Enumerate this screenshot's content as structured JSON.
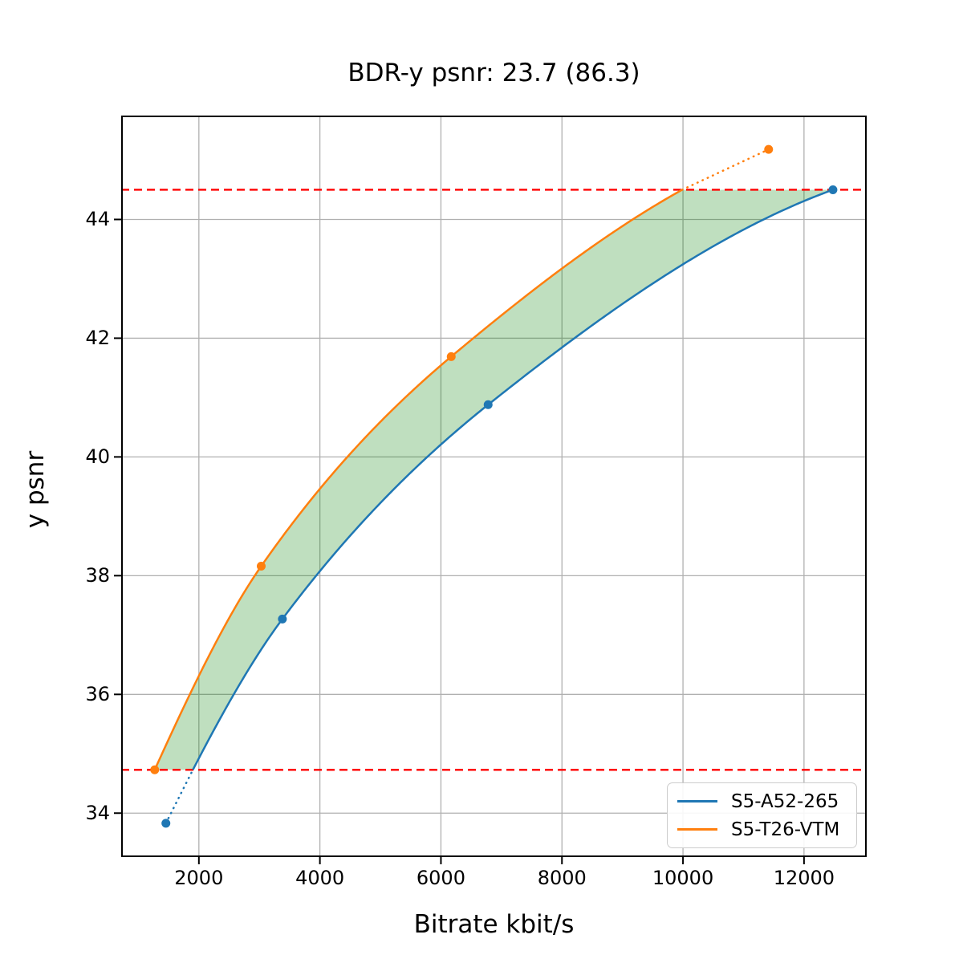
{
  "title": "BDR-y psnr: 23.7 (86.3)",
  "xlabel": "Bitrate kbit/s",
  "ylabel": "y psnr",
  "legend": {
    "position": "lower right",
    "items": [
      {
        "label": "S5-A52-265",
        "color": "#1f77b4"
      },
      {
        "label": "S5-T26-VTM",
        "color": "#ff7f0e"
      }
    ]
  },
  "chart_data": {
    "type": "line",
    "title": "BDR-y psnr: 23.7 (86.3)",
    "xlabel": "Bitrate kbit/s",
    "ylabel": "y psnr",
    "xlim": [
      716,
      13036
    ],
    "ylim": [
      33.26,
      45.75
    ],
    "xticks": [
      2000,
      4000,
      6000,
      8000,
      10000,
      12000
    ],
    "yticks": [
      34,
      36,
      38,
      40,
      42,
      44
    ],
    "grid": true,
    "grid_color": "#b0b0b0",
    "series": [
      {
        "name": "S5-A52-265",
        "color": "#1f77b4",
        "marker": "circle",
        "interpolation": "pchip",
        "x": [
          1455,
          3380,
          6780,
          12478
        ],
        "y": [
          33.83,
          37.27,
          40.88,
          44.5
        ]
      },
      {
        "name": "S5-T26-VTM",
        "color": "#ff7f0e",
        "marker": "circle",
        "interpolation": "pchip",
        "x": [
          1270,
          3030,
          6170,
          11415
        ],
        "y": [
          34.73,
          38.16,
          41.69,
          45.18
        ]
      }
    ],
    "overlap_band": {
      "low": 34.73,
      "high": 44.5,
      "line_color": "#ff0000",
      "line_style": "dashed",
      "fill_color": "#008000",
      "fill_opacity": 0.25
    }
  }
}
